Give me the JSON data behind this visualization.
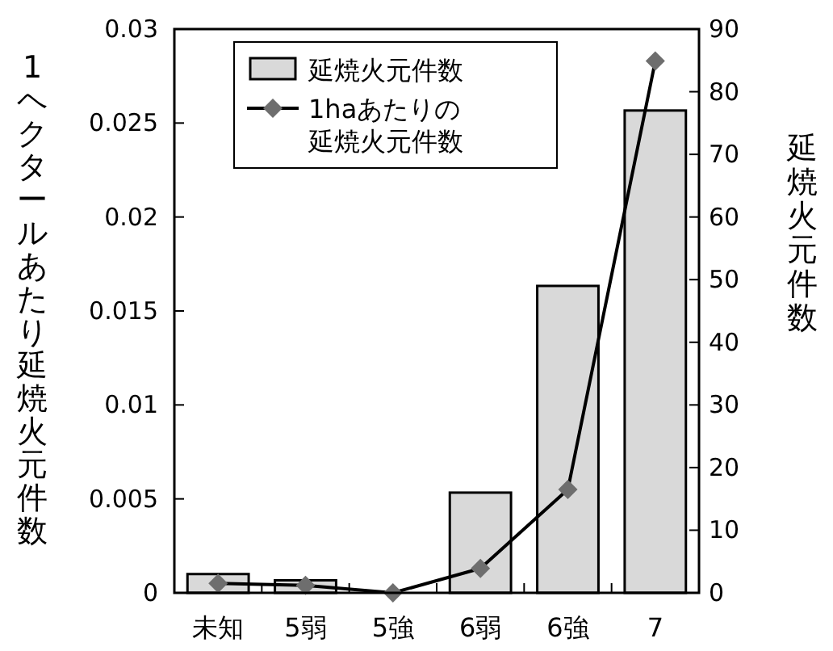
{
  "chart_data": {
    "type": "bar",
    "categories": [
      "未知",
      "5弱",
      "5強",
      "6弱",
      "6強",
      "7"
    ],
    "ylabel": "1ヘクタールあたり延焼火元件数",
    "y2label": "延焼火元件数",
    "ylim": [
      0,
      0.03
    ],
    "yticks": [
      0,
      0.005,
      0.01,
      0.015,
      0.02,
      0.025,
      0.03
    ],
    "y2lim": [
      0,
      90
    ],
    "y2ticks": [
      0,
      10,
      20,
      30,
      40,
      50,
      60,
      70,
      80,
      90
    ],
    "series": [
      {
        "name": "延焼火元件数",
        "axis": "y2",
        "color": "#d9d9d9",
        "values": [
          3,
          2,
          0,
          16,
          49,
          77
        ]
      },
      {
        "name": "1haあたりの延焼火元件数",
        "type": "line",
        "axis": "y",
        "color": "#000000",
        "marker": "diamond",
        "values": [
          0.0005,
          0.0004,
          0,
          0.0013,
          0.0055,
          0.0283
        ]
      }
    ],
    "legend": "top left",
    "grid": false
  }
}
